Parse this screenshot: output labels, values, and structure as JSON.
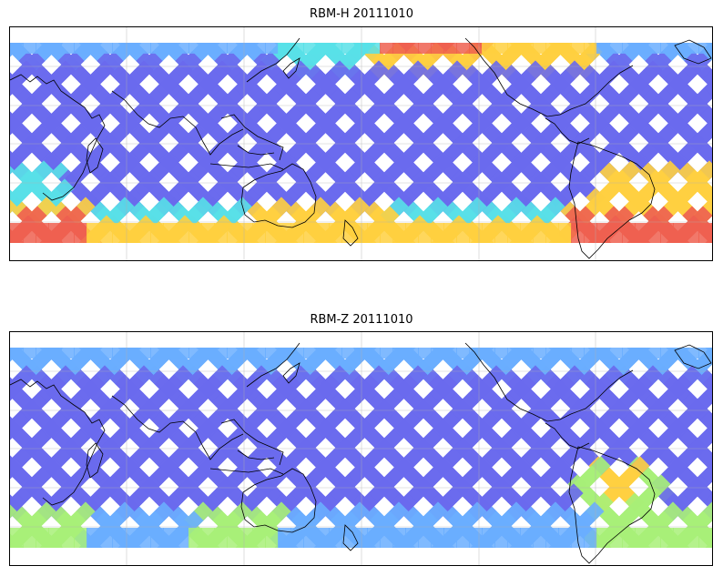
{
  "panels": [
    {
      "title": "RBM-H 20111010",
      "colormap": "jet",
      "track_colors": {
        "base": "#6a6aee",
        "mid": "#6aaeff",
        "warm": "#ffd040",
        "hot": "#ee6050"
      },
      "hot_regions": [
        "south-polar band",
        "northern Pacific / Atlantic band",
        "South Atlantic"
      ]
    },
    {
      "title": "RBM-Z 20111010",
      "colormap": "jet",
      "track_colors": {
        "base": "#6a6aee",
        "mid": "#6aaeff",
        "warm": "#a8f078",
        "hot": "#ffd040"
      },
      "hot_regions": [
        "South Atlantic",
        "south-polar band (weak)"
      ]
    }
  ]
}
